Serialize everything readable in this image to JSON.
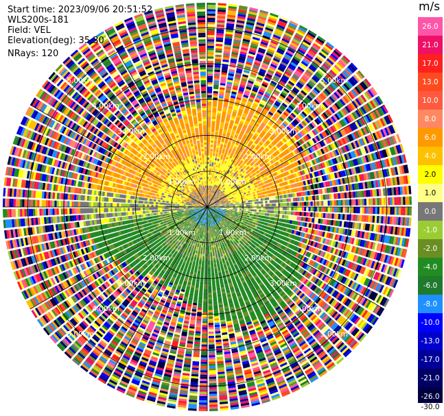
{
  "header": {
    "start_time": "Start time: 2023/09/06 20:51:52",
    "instrument": "WLS200s-181",
    "field": "Field: VEL",
    "elevation": "Elevation(deg): 35.30",
    "nrays": "NRays: 120"
  },
  "colorbar": {
    "unit": "m/s",
    "ticks": [
      "26.0",
      "21.0",
      "17.0",
      "13.0",
      "10.0",
      "8.0",
      "6.0",
      "4.0",
      "2.0",
      "1.0",
      "0.0",
      "-1.0",
      "-2.0",
      "-4.0",
      "-6.0",
      "-8.0",
      "-10.0",
      "-13.0",
      "-17.0",
      "-21.0",
      "-26.0",
      "-30.0"
    ],
    "bands": [
      {
        "label": "26.0",
        "color": "#ff55a8",
        "label_color": "#ffffff"
      },
      {
        "label": "21.0",
        "color": "#ee1166",
        "label_color": "#ffffff"
      },
      {
        "label": "17.0",
        "color": "#ff2020",
        "label_color": "#ffffff"
      },
      {
        "label": "13.0",
        "color": "#ff4a20",
        "label_color": "#ffffff"
      },
      {
        "label": "10.0",
        "color": "#ff5a40",
        "label_color": "#ffffff"
      },
      {
        "label": "8.0",
        "color": "#ff8860",
        "label_color": "#ffffff"
      },
      {
        "label": "6.0",
        "color": "#ff9900",
        "label_color": "#ffffff"
      },
      {
        "label": "4.0",
        "color": "#ffc000",
        "label_color": "#ffffff"
      },
      {
        "label": "2.0",
        "color": "#ffff00",
        "label_color": "#000000"
      },
      {
        "label": "1.0",
        "color": "#ffff88",
        "label_color": "#000000"
      },
      {
        "label": "0.0",
        "color": "#777777",
        "label_color": "#ffffff"
      },
      {
        "label": "-1.0",
        "color": "#9acd32",
        "label_color": "#ffffff"
      },
      {
        "label": "-2.0",
        "color": "#6b8e23",
        "label_color": "#ffffff"
      },
      {
        "label": "-4.0",
        "color": "#228b22",
        "label_color": "#ffffff"
      },
      {
        "label": "-6.0",
        "color": "#1f7a2e",
        "label_color": "#ffffff"
      },
      {
        "label": "-8.0",
        "color": "#1e90ff",
        "label_color": "#ffffff"
      },
      {
        "label": "-10.0",
        "color": "#0000ff",
        "label_color": "#ffffff"
      },
      {
        "label": "-13.0",
        "color": "#0000cd",
        "label_color": "#ffffff"
      },
      {
        "label": "-17.0",
        "color": "#000099",
        "label_color": "#ffffff"
      },
      {
        "label": "-21.0",
        "color": "#000066",
        "label_color": "#ffffff"
      },
      {
        "label": "-26.0",
        "color": "#000040",
        "label_color": "#ffffff"
      }
    ]
  },
  "chart_data": {
    "type": "heatmap",
    "projection": "polar-ppi",
    "field": "VEL",
    "units": "m/s",
    "n_rays": 120,
    "elevation_deg": 35.3,
    "range_rings_km": [
      1.0,
      2.0,
      3.0,
      4.0,
      5.0
    ],
    "range_labels": [
      "1.00km",
      "2.00km",
      "3.00km",
      "4.00km",
      "5.00km"
    ],
    "spokes_deg": [
      0,
      30,
      60,
      90,
      120,
      150,
      180,
      210,
      240,
      270,
      300,
      330
    ],
    "max_range_km": 5.7,
    "pattern": {
      "near_field_max_km": 2.8,
      "upper_sector_velocity": "positive (2 to 6 m/s, yellow/orange)",
      "lower_sector_velocity": "negative (-1 to -6 m/s, green)",
      "far_field": "noise (all colors) beyond ~3 km"
    }
  }
}
